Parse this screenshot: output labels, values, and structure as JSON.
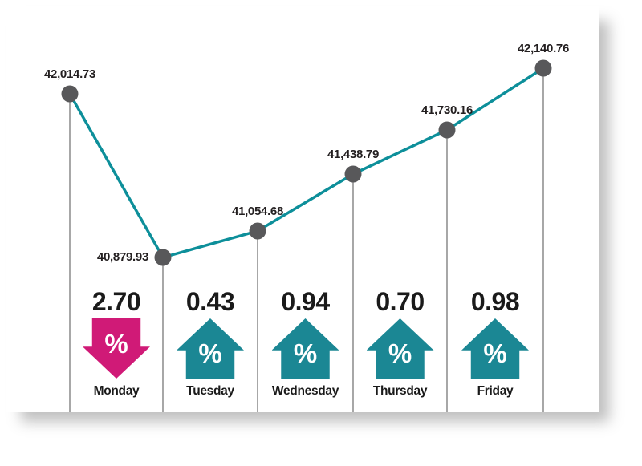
{
  "chart_data": {
    "type": "line",
    "title": "",
    "xlabel": "",
    "ylabel": "",
    "categories": [
      "",
      "Monday",
      "Tuesday",
      "Wednesday",
      "Thursday",
      "Friday"
    ],
    "values": [
      42014.73,
      40879.93,
      41054.68,
      41438.79,
      41730.16,
      42140.76
    ],
    "point_labels": [
      "42,014.73",
      "40,879.93",
      "41,054.68",
      "41,438.79",
      "41,730.16",
      "42,140.76"
    ],
    "daily_change": [
      {
        "day": "Monday",
        "pct": "2.70",
        "direction": "down"
      },
      {
        "day": "Tuesday",
        "pct": "0.43",
        "direction": "up"
      },
      {
        "day": "Wednesday",
        "pct": "0.94",
        "direction": "up"
      },
      {
        "day": "Thursday",
        "pct": "0.70",
        "direction": "up"
      },
      {
        "day": "Friday",
        "pct": "0.98",
        "direction": "up"
      }
    ],
    "percent_symbol": "%",
    "ylim": [
      40700,
      42300
    ],
    "grid": false,
    "legend": false,
    "colors": {
      "line": "#0d8f9a",
      "dot": "#58585a",
      "up_arrow": "#1b8794",
      "down_arrow": "#d01a77",
      "text": "#231f20",
      "drop_line": "#6d6d6d"
    }
  }
}
